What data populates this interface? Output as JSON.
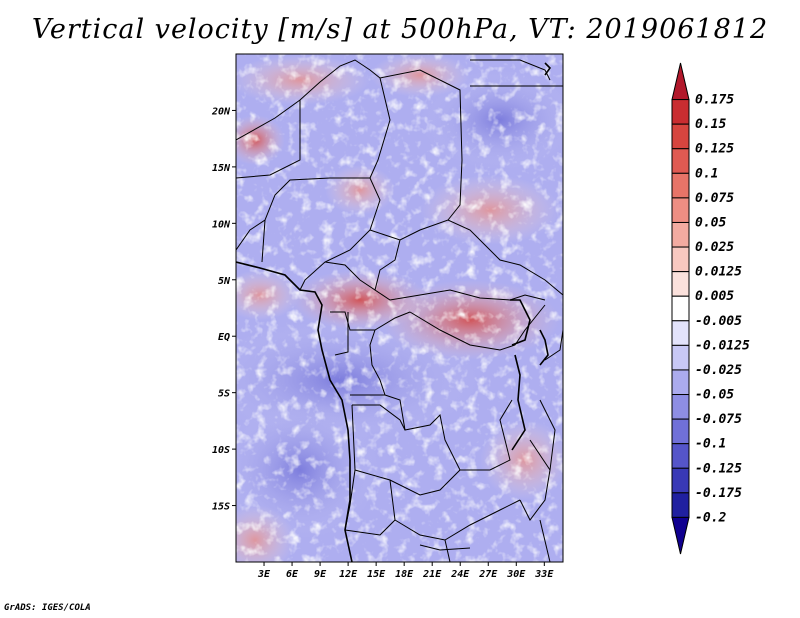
{
  "title": "Vertical velocity [m/s] at 500hPa, VT: 2019061812",
  "footer": "GrADS: IGES/COLA",
  "map": {
    "lat_labels": [
      "20N",
      "15N",
      "10N",
      "5N",
      "EQ",
      "5S",
      "10S",
      "15S"
    ],
    "lat_values": [
      20,
      15,
      10,
      5,
      0,
      -5,
      -10,
      -15
    ],
    "lon_labels": [
      "3E",
      "6E",
      "9E",
      "12E",
      "15E",
      "18E",
      "21E",
      "24E",
      "27E",
      "30E",
      "33E"
    ],
    "lon_values": [
      3,
      6,
      9,
      12,
      15,
      18,
      21,
      24,
      27,
      30,
      33
    ],
    "lon_range": [
      0,
      35
    ],
    "lat_range": [
      -20,
      25
    ],
    "field": "vertical velocity",
    "units": "m/s"
  },
  "colorbar": {
    "labels": [
      "0.175",
      "0.15",
      "0.125",
      "0.1",
      "0.075",
      "0.05",
      "0.025",
      "0.0125",
      "0.005",
      "-0.005",
      "-0.0125",
      "-0.025",
      "-0.05",
      "-0.075",
      "-0.1",
      "-0.125",
      "-0.175",
      "-0.2"
    ],
    "colors": [
      "#b2182b",
      "#c92d31",
      "#d6453f",
      "#e05a52",
      "#e77468",
      "#ee8e83",
      "#f3aba1",
      "#f8c8c0",
      "#fbe1dc",
      "#ffffff",
      "#e3e3fb",
      "#c8c8f5",
      "#ababee",
      "#8e8ee4",
      "#7070d8",
      "#5555c9",
      "#3939b6",
      "#2020a0",
      "#100090"
    ]
  }
}
